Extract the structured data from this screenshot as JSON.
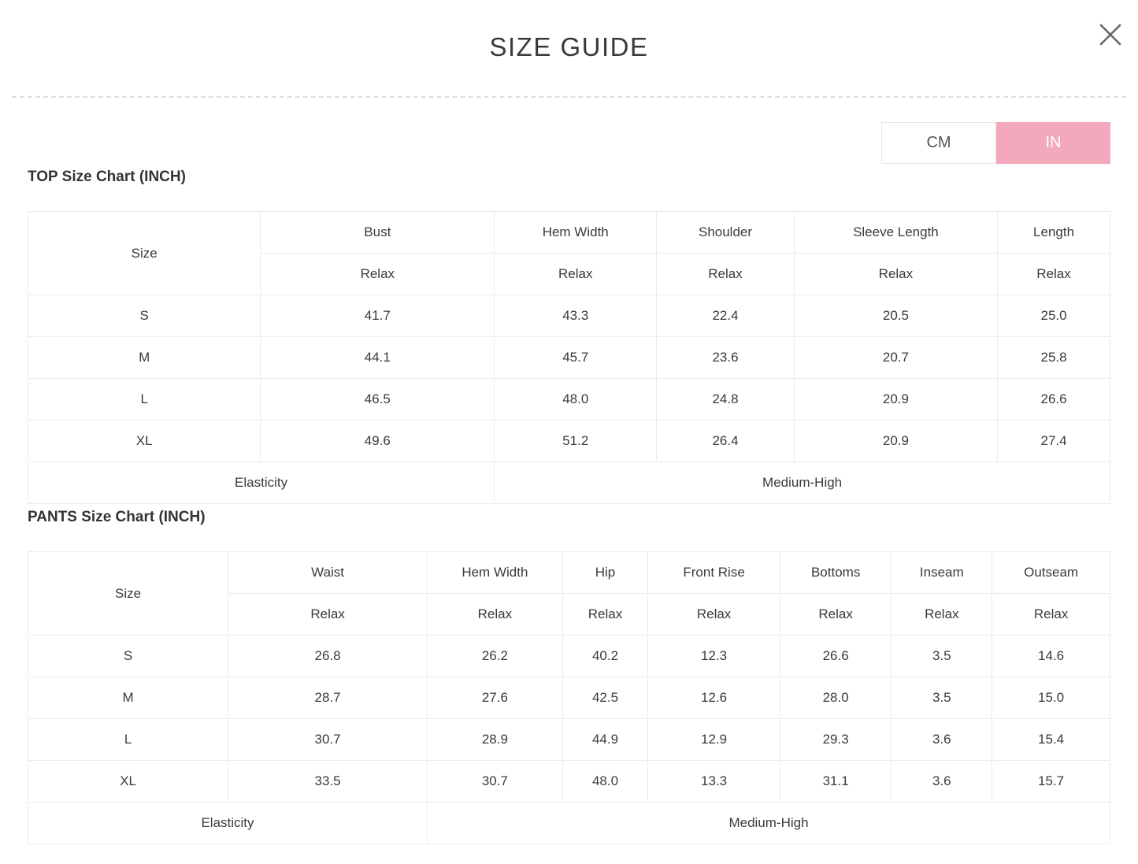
{
  "modal": {
    "title": "SIZE GUIDE"
  },
  "unit_toggle": {
    "options": [
      {
        "label": "CM",
        "active": false
      },
      {
        "label": "IN",
        "active": true
      }
    ],
    "active_color": "#f3a8bc"
  },
  "tables": [
    {
      "heading": "TOP Size Chart (INCH)",
      "size_header": "Size",
      "columns": [
        "Bust",
        "Hem Width",
        "Shoulder",
        "Sleeve Length",
        "Length"
      ],
      "sub_header": "Relax",
      "rows": [
        {
          "size": "S",
          "values": [
            "41.7",
            "43.3",
            "22.4",
            "20.5",
            "25.0"
          ]
        },
        {
          "size": "M",
          "values": [
            "44.1",
            "45.7",
            "23.6",
            "20.7",
            "25.8"
          ]
        },
        {
          "size": "L",
          "values": [
            "46.5",
            "48.0",
            "24.8",
            "20.9",
            "26.6"
          ]
        },
        {
          "size": "XL",
          "values": [
            "49.6",
            "51.2",
            "26.4",
            "20.9",
            "27.4"
          ]
        }
      ],
      "footer": {
        "label": "Elasticity",
        "value": "Medium-High"
      }
    },
    {
      "heading": "PANTS Size Chart (INCH)",
      "size_header": "Size",
      "columns": [
        "Waist",
        "Hem Width",
        "Hip",
        "Front Rise",
        "Bottoms",
        "Inseam",
        "Outseam"
      ],
      "sub_header": "Relax",
      "rows": [
        {
          "size": "S",
          "values": [
            "26.8",
            "26.2",
            "40.2",
            "12.3",
            "26.6",
            "3.5",
            "14.6"
          ]
        },
        {
          "size": "M",
          "values": [
            "28.7",
            "27.6",
            "42.5",
            "12.6",
            "28.0",
            "3.5",
            "15.0"
          ]
        },
        {
          "size": "L",
          "values": [
            "30.7",
            "28.9",
            "44.9",
            "12.9",
            "29.3",
            "3.6",
            "15.4"
          ]
        },
        {
          "size": "XL",
          "values": [
            "33.5",
            "30.7",
            "48.0",
            "13.3",
            "31.1",
            "3.6",
            "15.7"
          ]
        }
      ],
      "footer": {
        "label": "Elasticity",
        "value": "Medium-High"
      }
    }
  ]
}
